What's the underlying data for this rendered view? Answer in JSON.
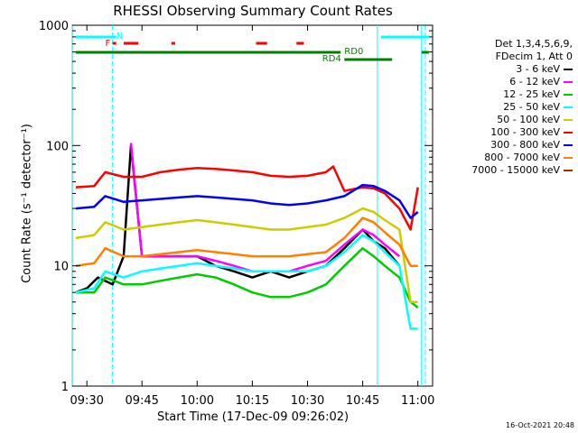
{
  "chart_data": {
    "type": "line",
    "title": "RHESSI Observing Summary Count Rates",
    "xlabel": "Start Time (17-Dec-09 09:26:02)",
    "ylabel": "Count Rate (s⁻¹ detector⁻¹)",
    "yscale": "log",
    "ylim": [
      1,
      1000
    ],
    "xlim": [
      "09:26:02",
      "11:04:00"
    ],
    "x_ticks": [
      "09:30",
      "09:45",
      "10:00",
      "10:15",
      "10:30",
      "10:45",
      "11:00"
    ],
    "y_ticks": [
      "1",
      "10",
      "100",
      "1000"
    ],
    "legend": {
      "header": [
        "Det 1,3,4,5,6,9,",
        "FDecim 1, Att 0"
      ],
      "placement": "right",
      "entries": [
        {
          "label": "3 - 6 keV",
          "color": "#000000"
        },
        {
          "label": "6 - 12 keV",
          "color": "#ff00ff"
        },
        {
          "label": "12 - 25 keV",
          "color": "#00cc00"
        },
        {
          "label": "25 - 50 keV",
          "color": "#00ffff"
        },
        {
          "label": "50 - 100 keV",
          "color": "#cccc00"
        },
        {
          "label": "100 - 300 keV",
          "color": "#ff0000"
        },
        {
          "label": "300 - 800 keV",
          "color": "#0000ff"
        },
        {
          "label": "800 - 7000 keV",
          "color": "#ff8000"
        },
        {
          "label": "7000 - 15000 keV",
          "color": "#993300"
        }
      ]
    },
    "series": [
      {
        "name": "3 - 6 keV",
        "color": "#000000",
        "x": [
          "09:27",
          "09:30",
          "09:33",
          "09:37",
          "09:40",
          "09:42",
          "09:45",
          "09:50",
          "09:55",
          "10:00",
          "10:05",
          "10:10",
          "10:15",
          "10:20",
          "10:25",
          "10:30",
          "10:35",
          "10:40",
          "10:45",
          "10:48",
          "10:51",
          "10:55"
        ],
        "y": [
          6,
          6.5,
          8,
          7,
          12,
          100,
          12,
          12,
          12,
          12,
          10,
          9,
          8,
          9,
          8,
          9,
          10,
          14,
          20,
          16,
          14,
          10
        ]
      },
      {
        "name": "6 - 12 keV",
        "color": "#ff00ff",
        "x": [
          "09:42",
          "09:45",
          "09:50",
          "09:55",
          "10:00",
          "10:05",
          "10:10",
          "10:15",
          "10:20",
          "10:25",
          "10:30",
          "10:35",
          "10:40",
          "10:45",
          "10:48",
          "10:51",
          "10:55"
        ],
        "y": [
          105,
          12,
          12,
          12,
          12,
          11,
          10,
          9,
          9,
          9,
          10,
          11,
          15,
          20,
          18,
          15,
          12
        ]
      },
      {
        "name": "12 - 25 keV",
        "color": "#00cc00",
        "x": [
          "09:27",
          "09:32",
          "09:35",
          "09:40",
          "09:45",
          "09:50",
          "09:55",
          "10:00",
          "10:05",
          "10:10",
          "10:15",
          "10:20",
          "10:25",
          "10:30",
          "10:35",
          "10:40",
          "10:45",
          "10:48",
          "10:51",
          "10:55",
          "10:58",
          "11:00"
        ],
        "y": [
          6,
          6,
          8,
          7,
          7,
          7.5,
          8,
          8.5,
          8,
          7,
          6,
          5.5,
          5.5,
          6,
          7,
          10,
          14,
          12,
          10,
          8,
          5,
          4.5
        ]
      },
      {
        "name": "25 - 50 keV",
        "color": "#00ffff",
        "x": [
          "09:27",
          "09:32",
          "09:35",
          "09:40",
          "09:45",
          "09:50",
          "09:55",
          "10:00",
          "10:05",
          "10:10",
          "10:15",
          "10:20",
          "10:25",
          "10:30",
          "10:35",
          "10:40",
          "10:45",
          "10:48",
          "10:51",
          "10:55",
          "10:58",
          "11:00"
        ],
        "y": [
          6,
          6.5,
          9,
          8,
          9,
          9.5,
          10,
          10.5,
          10,
          9.5,
          9,
          9,
          9,
          9,
          10,
          13,
          18,
          16,
          13,
          10,
          3,
          3
        ]
      },
      {
        "name": "50 - 100 keV",
        "color": "#cccc00",
        "x": [
          "09:27",
          "09:32",
          "09:35",
          "09:40",
          "09:45",
          "09:50",
          "09:55",
          "10:00",
          "10:05",
          "10:10",
          "10:15",
          "10:20",
          "10:25",
          "10:30",
          "10:35",
          "10:40",
          "10:45",
          "10:48",
          "10:51",
          "10:55",
          "10:58",
          "11:00"
        ],
        "y": [
          17,
          18,
          23,
          20,
          21,
          22,
          23,
          24,
          23,
          22,
          21,
          20,
          20,
          21,
          22,
          25,
          30,
          28,
          24,
          20,
          5,
          5
        ]
      },
      {
        "name": "100 - 300 keV",
        "color": "#ff0000",
        "x": [
          "09:27",
          "09:32",
          "09:35",
          "09:40",
          "09:45",
          "09:50",
          "09:55",
          "10:00",
          "10:05",
          "10:10",
          "10:15",
          "10:20",
          "10:25",
          "10:30",
          "10:35",
          "10:37",
          "10:40",
          "10:45",
          "10:48",
          "10:51",
          "10:55",
          "10:58",
          "11:00"
        ],
        "y": [
          45,
          46,
          60,
          55,
          55,
          60,
          63,
          65,
          64,
          62,
          60,
          56,
          55,
          56,
          60,
          67,
          42,
          45,
          44,
          40,
          30,
          20,
          45
        ]
      },
      {
        "name": "300 - 800 keV",
        "color": "#0000ff",
        "x": [
          "09:27",
          "09:32",
          "09:35",
          "09:40",
          "09:45",
          "09:50",
          "09:55",
          "10:00",
          "10:05",
          "10:10",
          "10:15",
          "10:20",
          "10:25",
          "10:30",
          "10:35",
          "10:40",
          "10:45",
          "10:48",
          "10:51",
          "10:55",
          "10:58",
          "11:00"
        ],
        "y": [
          30,
          31,
          38,
          34,
          35,
          36,
          37,
          38,
          37,
          36,
          35,
          33,
          32,
          33,
          35,
          38,
          47,
          46,
          42,
          35,
          25,
          28
        ]
      },
      {
        "name": "800 - 7000 keV",
        "color": "#ff8000",
        "x": [
          "09:27",
          "09:32",
          "09:35",
          "09:40",
          "09:45",
          "09:50",
          "09:55",
          "10:00",
          "10:05",
          "10:10",
          "10:15",
          "10:20",
          "10:25",
          "10:30",
          "10:35",
          "10:40",
          "10:45",
          "10:48",
          "10:51",
          "10:55",
          "10:58",
          "11:00"
        ],
        "y": [
          10,
          10.5,
          14,
          12,
          12,
          12.5,
          13,
          13.5,
          13,
          12.5,
          12,
          12,
          12,
          12.5,
          13,
          17,
          25,
          23,
          19,
          15,
          10,
          10
        ]
      }
    ],
    "attenuator_bars": [
      {
        "label": "N",
        "color": "#00ffff",
        "segments": [
          [
            "09:27",
            "09:38"
          ],
          [
            "10:50",
            "11:03"
          ]
        ]
      },
      {
        "label": "F",
        "color": "#ff0000",
        "segments": [
          [
            "09:37",
            "09:38"
          ],
          [
            "09:40",
            "09:44"
          ],
          [
            "09:53",
            "09:54"
          ],
          [
            "10:16",
            "10:19"
          ],
          [
            "10:27",
            "10:29"
          ]
        ]
      },
      {
        "label": "RD0",
        "color": "#008000",
        "segments": [
          [
            "09:27",
            "10:39"
          ],
          [
            "11:01",
            "11:03"
          ]
        ]
      },
      {
        "label": "RD4",
        "color": "#008000",
        "segments": [
          [
            "10:40",
            "10:53"
          ]
        ]
      }
    ],
    "markers": [
      {
        "time": "09:26",
        "color": "#00ffff",
        "style": "solid"
      },
      {
        "time": "09:37",
        "color": "#00ffff",
        "style": "dashed"
      },
      {
        "time": "10:49",
        "color": "#00ffff",
        "style": "solid"
      },
      {
        "time": "11:01",
        "color": "#00ffff",
        "style": "solid"
      },
      {
        "time": "11:02",
        "color": "#00ffff",
        "style": "dashed"
      }
    ]
  },
  "timestamp": "16-Oct-2021 20:48"
}
